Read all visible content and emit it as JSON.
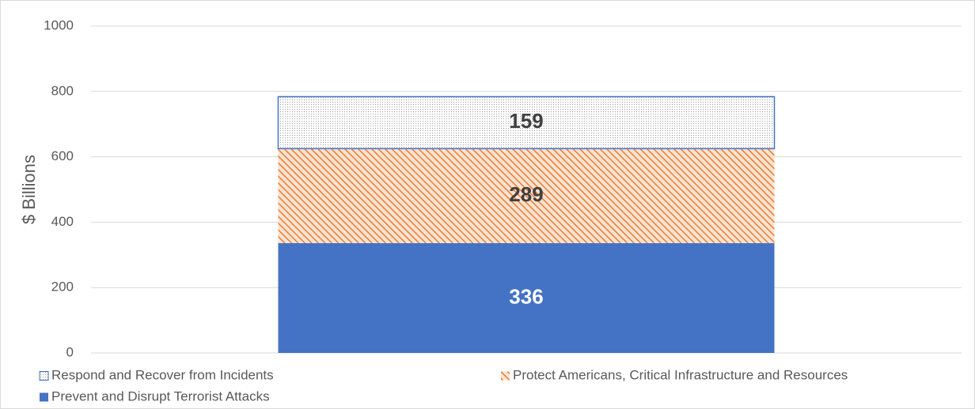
{
  "chart_data": {
    "type": "stacked_bar",
    "y_label": "$ Billions",
    "categories": [
      null
    ],
    "series": [
      {
        "name": "Prevent and Disrupt Terrorist Attacks",
        "color": "#4472c4",
        "pattern": "solid",
        "values": [
          336
        ]
      },
      {
        "name": "Protect Americans, Critical Infrastructure and Resources",
        "color": "#ed7d31",
        "pattern": "hatch",
        "values": [
          289
        ]
      },
      {
        "name": "Respond and Recover from Incidents",
        "color": "#4472c4",
        "pattern": "dots",
        "values": [
          159
        ]
      }
    ],
    "ylim": [
      0,
      1000
    ],
    "yticks": [
      0,
      200,
      400,
      600,
      800,
      1000
    ],
    "grid": true,
    "legend": "bottom"
  }
}
